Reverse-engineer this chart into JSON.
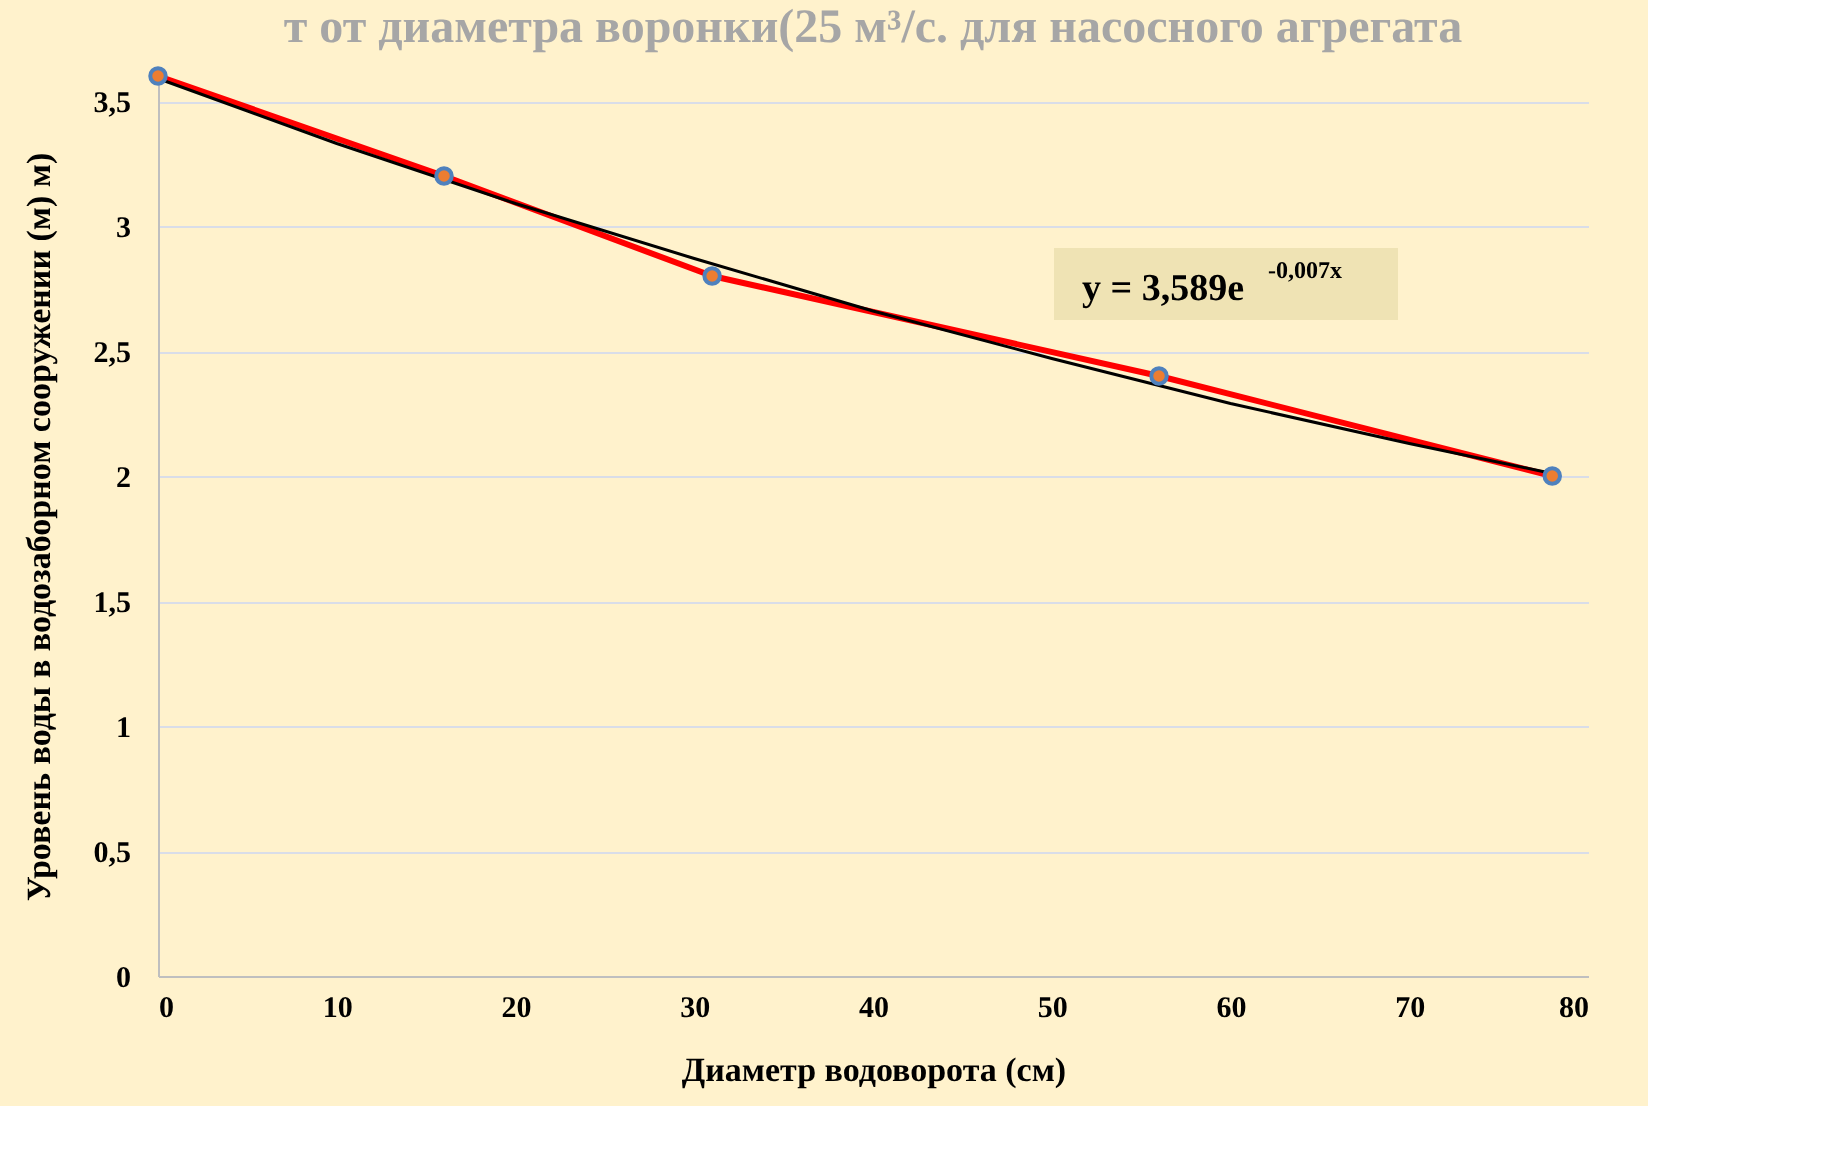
{
  "chart_data": {
    "type": "line",
    "title": "т от диаметра воронки(25 м³/с. для насосного агрегата",
    "xlabel": "Диаметр водоворота (см)",
    "ylabel": "Уровень воды в водозаборном сооружении (м)  м)",
    "x": [
      0,
      16,
      31,
      56,
      78
    ],
    "series": [
      {
        "color": "#ff0000",
        "marker": "circle",
        "values": [
          3.6,
          3.2,
          2.8,
          2.4,
          2.0
        ]
      },
      {
        "type": "line",
        "color": "#000000",
        "marker": "none",
        "x": [
          0,
          10,
          20,
          30,
          40,
          50,
          60,
          70,
          78
        ],
        "values": [
          3.59,
          3.33,
          3.09,
          2.87,
          2.66,
          2.47,
          2.29,
          2.13,
          2.01
        ]
      }
    ],
    "xlim": [
      0,
      80
    ],
    "xticks": [
      0,
      10,
      20,
      30,
      40,
      50,
      60,
      70,
      80
    ],
    "ylim": [
      0,
      3.6
    ],
    "yticks": [
      0,
      {
        "value": 0.5,
        "label": "0,5"
      },
      1,
      {
        "value": 1.5,
        "label": "1,5"
      },
      2,
      {
        "value": 2.5,
        "label": "2,5"
      },
      3,
      {
        "value": 3.5,
        "label": "3,5"
      }
    ],
    "grid": "y",
    "annotations": [
      "y = 3,589e$^{-0,007x}$"
    ]
  }
}
